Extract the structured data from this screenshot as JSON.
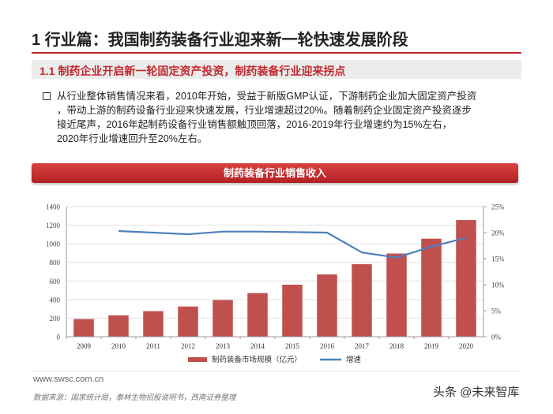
{
  "slide": {
    "title": "1 行业篇：我国制药装备行业迎来新一轮快速发展阶段",
    "section_title": "1.1  制药企业开启新一轮固定资产投资，制药装备行业迎来拐点",
    "body_lines": [
      "从行业整体销售情况来看，2010年开始，受益于新版GMP认证，下游制药企业加大固定资产投资",
      "，带动上游的制药设备行业迎来快速发展，行业增速超过20%。随着制药企业固定资产投资逐步",
      "接近尾声，2016年起制药设备行业销售额触顶回落，2016-2019年行业增速约为15%左右，",
      "2020年行业增速回升至20%左右。"
    ]
  },
  "chart_banner": "制药装备行业销售收入",
  "chart_data": {
    "type": "bar+line",
    "title": "制药装备行业销售收入",
    "categories": [
      "2009",
      "2010",
      "2011",
      "2012",
      "2013",
      "2014",
      "2015",
      "2016",
      "2017",
      "2018",
      "2019",
      "2020"
    ],
    "series": [
      {
        "name": "制药装备市场规模（亿元）",
        "type": "bar",
        "axis": "left",
        "color": "#c0504d",
        "values": [
          190,
          230,
          275,
          325,
          395,
          470,
          560,
          670,
          780,
          895,
          1055,
          1255
        ]
      },
      {
        "name": "增速",
        "type": "line",
        "axis": "right",
        "color": "#4f81bd",
        "values": [
          null,
          20.3,
          20.0,
          19.7,
          20.2,
          20.2,
          20.1,
          20.0,
          16.2,
          15.2,
          17.3,
          19.0
        ]
      }
    ],
    "y_left": {
      "min": 0,
      "max": 1400,
      "ticks": [
        "0",
        "200",
        "400",
        "600",
        "800",
        "1000",
        "1200",
        "1400"
      ]
    },
    "y_right": {
      "min": 0,
      "max": 25,
      "ticks": [
        "0%",
        "5%",
        "10%",
        "15%",
        "20%",
        "25%"
      ]
    },
    "legend": [
      "制药装备市场规模（亿元）",
      "增速"
    ],
    "legend_position": "bottom"
  },
  "footer": {
    "url": "www.swsc.com.cn",
    "source": "数据来源：国家统计局，泰林生物招股说明书，西南证券整理",
    "watermark": "头条 @未来智库"
  }
}
